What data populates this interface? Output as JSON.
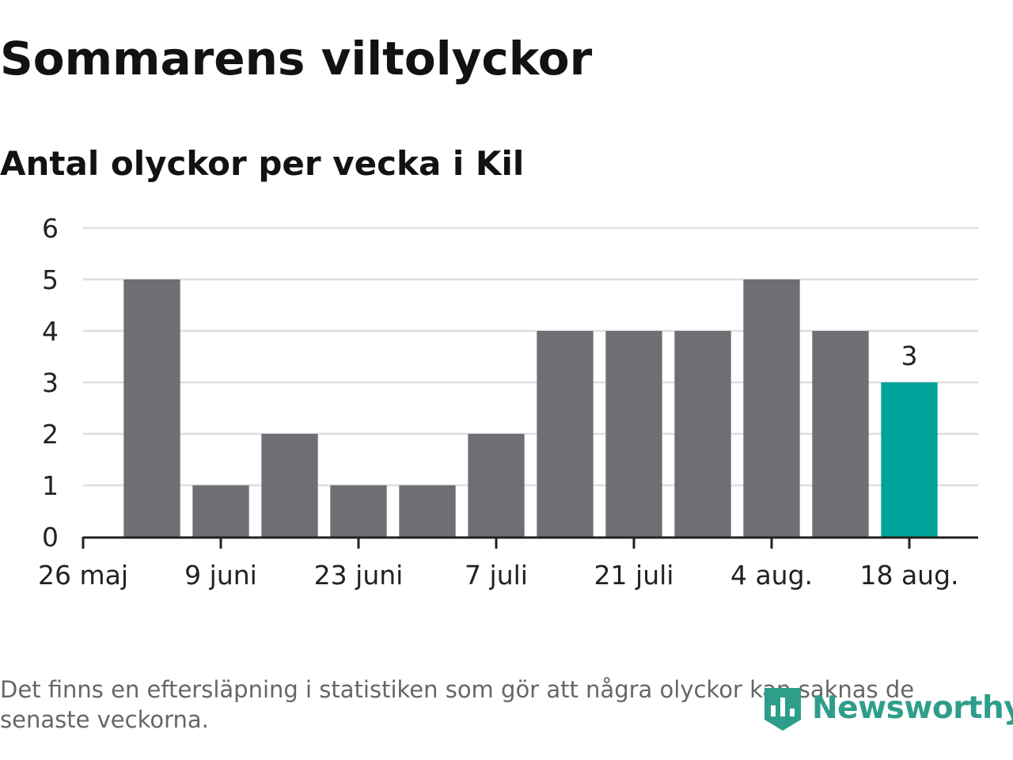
{
  "title": "Sommarens viltolyckor",
  "subtitle": "Antal olyckor per vecka i Kil",
  "footnote": "Det finns en eftersläpning i statistiken som gör att några olyckor kan saknas de senaste veckorna.",
  "brand": "Newsworthy",
  "chart_data": {
    "type": "bar",
    "x_tick_labels": [
      "26 maj",
      "9 juni",
      "23 juni",
      "7 juli",
      "21 juli",
      "4 aug.",
      "18 aug."
    ],
    "values": [
      5,
      1,
      2,
      1,
      1,
      2,
      4,
      4,
      4,
      5,
      4,
      3
    ],
    "highlight_index": 11,
    "highlight_label": "3",
    "y_ticks": [
      0,
      1,
      2,
      3,
      4,
      5,
      6
    ],
    "ylim": [
      0,
      6
    ],
    "grid": true,
    "colors": {
      "bar": "#6f6e74",
      "highlight": "#00a39a",
      "grid": "#dedede",
      "axis": "#222222"
    }
  }
}
